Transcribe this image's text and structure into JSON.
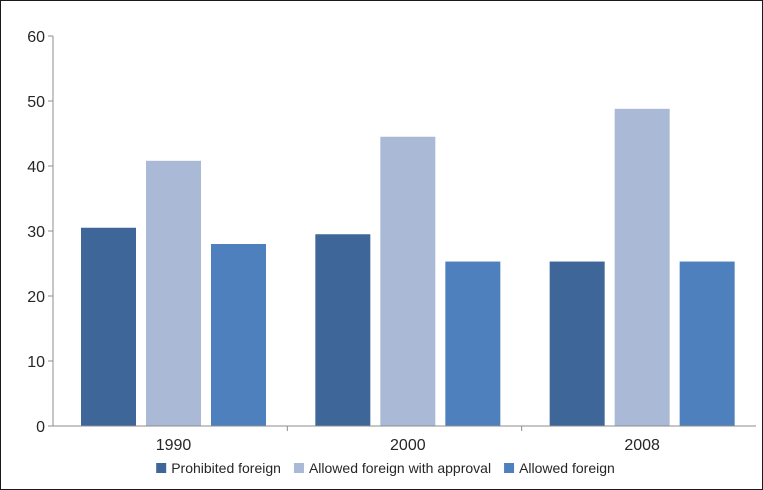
{
  "chart_data": {
    "type": "bar",
    "title": "",
    "xlabel": "",
    "ylabel": "",
    "categories": [
      "1990",
      "2000",
      "2008"
    ],
    "series": [
      {
        "name": "Prohibited foreign",
        "color": "#3f6698",
        "values": [
          30.5,
          29.5,
          25.3
        ]
      },
      {
        "name": "Allowed foreign with approval",
        "color": "#a9b9d6",
        "values": [
          40.8,
          44.5,
          48.8
        ]
      },
      {
        "name": "Allowed foreign",
        "color": "#4d80bd",
        "values": [
          28.0,
          25.3,
          25.3
        ]
      }
    ],
    "ylim": [
      0,
      60
    ],
    "yticks": [
      0,
      10,
      20,
      30,
      40,
      50,
      60
    ],
    "grid": false,
    "legend": "bottom"
  }
}
